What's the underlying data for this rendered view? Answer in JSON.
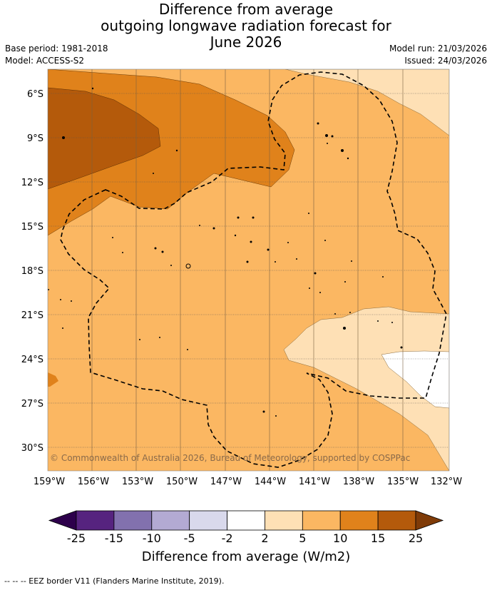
{
  "title_lines": [
    "Difference from average",
    "outgoing longwave radiation forecast for",
    "June 2026"
  ],
  "base_period": "Base period: 1981-2018",
  "model": "Model: ACCESS-S2",
  "model_run": "Model run: 21/03/2026",
  "issued": "Issued: 24/03/2026",
  "copyright": "© Commonwealth of Australia 2026, Bureau of Meteorology, supported by COSPPac",
  "lat_labels": [
    "6°S",
    "9°S",
    "12°S",
    "15°S",
    "18°S",
    "21°S",
    "24°S",
    "27°S",
    "30°S"
  ],
  "lon_labels": [
    "159°W",
    "156°W",
    "153°W",
    "150°W",
    "147°W",
    "144°W",
    "141°W",
    "138°W",
    "135°W",
    "132°W"
  ],
  "colorbar": {
    "ticks": [
      "-25",
      "-15",
      "-10",
      "-5",
      "-2",
      "2",
      "5",
      "10",
      "15",
      "25"
    ],
    "colors": [
      "#56237f",
      "#8271ae",
      "#b3aad3",
      "#d9d9ec",
      "#ffffff",
      "#fee0b5",
      "#fbb762",
      "#e0821b",
      "#b45a0b"
    ],
    "under_color": "#2d004b",
    "over_color": "#7f3b08",
    "label": "Difference from average (W/m2)"
  },
  "legend_footer": "--  --  -- EEZ border V11 (Flanders Marine Institute, 2019)."
}
